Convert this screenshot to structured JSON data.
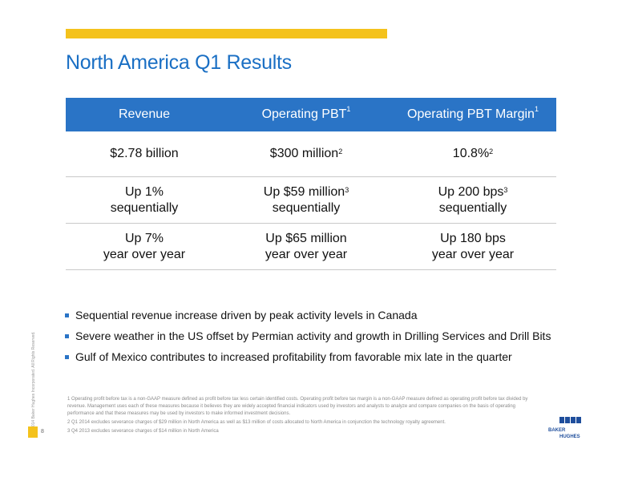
{
  "slide": {
    "title": "North America Q1 Results",
    "page_number": "8",
    "copyright": "© 2014 Baker Hughes Incorporated. All Rights Reserved."
  },
  "table": {
    "headers": [
      {
        "label": "Revenue",
        "sup": ""
      },
      {
        "label": "Operating PBT",
        "sup": "1"
      },
      {
        "label": "Operating PBT Margin",
        "sup": "1"
      }
    ],
    "rows": [
      [
        {
          "line1": "$2.78 billion",
          "sup": "",
          "line2": ""
        },
        {
          "line1": "$300 million",
          "sup": "2",
          "line2": ""
        },
        {
          "line1": "10.8%",
          "sup": "2",
          "line2": ""
        }
      ],
      [
        {
          "line1": "Up 1%",
          "sup": "",
          "line2": "sequentially"
        },
        {
          "line1": "Up $59 million",
          "sup": "3",
          "line2": "sequentially"
        },
        {
          "line1": "Up 200 bps",
          "sup": "3",
          "line2": "sequentially"
        }
      ],
      [
        {
          "line1": "Up 7%",
          "sup": "",
          "line2": "year over year"
        },
        {
          "line1": "Up $65 million",
          "sup": "",
          "line2": "year over year"
        },
        {
          "line1": "Up 180 bps",
          "sup": "",
          "line2": "year over year"
        }
      ]
    ]
  },
  "bullets": [
    "Sequential revenue increase driven by peak activity levels in Canada",
    "Severe weather in the US offset by Permian activity and growth in Drilling Services and Drill Bits",
    "Gulf of Mexico contributes to increased profitability from favorable mix late in the quarter"
  ],
  "footnotes": [
    "1 Operating profit before tax is a non-GAAP measure defined as profit before tax less certain identified costs. Operating profit before tax margin is a non-GAAP measure defined as operating profit before tax divided by revenue. Management uses each of these measures because it believes they are widely accepted financial indicators used by investors and analysts to analyze and compare companies on the basis of operating performance and that these measures may be used by investors to make informed investment decisions.",
    "2 Q1 2014 excludes severance charges of $29 million in North America as well as $13 million of costs allocated to North America in conjunction the technology royalty agreement.",
    "3 Q4 2013 excludes severance charges of $14 million in North America"
  ],
  "logo": {
    "line1": "BAKER",
    "line2": "HUGHES",
    "color": "#1f4e9c"
  },
  "colors": {
    "accent_yellow": "#f4c21c",
    "header_blue": "#2a74c6",
    "title_blue": "#1a6fc4"
  }
}
